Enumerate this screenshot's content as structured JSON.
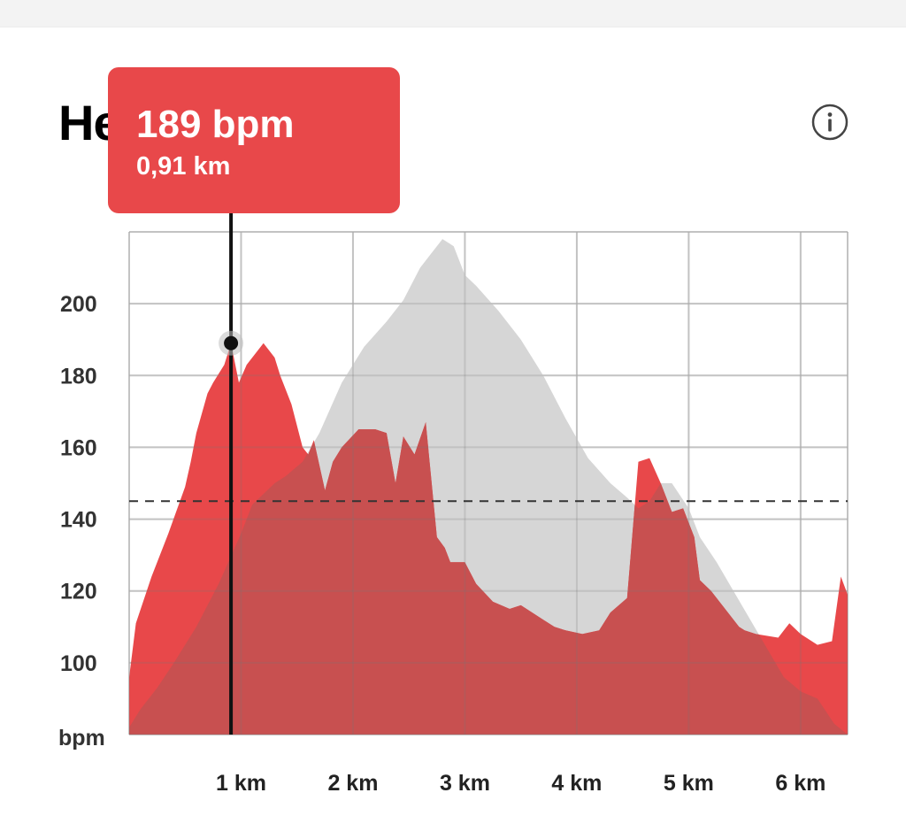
{
  "header": {
    "title": "He"
  },
  "tooltip": {
    "value": "189 bpm",
    "distance": "0,91 km"
  },
  "chart_data": {
    "type": "area",
    "ylabel": "bpm",
    "ylim": [
      80,
      220
    ],
    "xlim": [
      0,
      6.42
    ],
    "y_ticks": [
      100,
      120,
      140,
      160,
      180,
      200
    ],
    "x_ticks": [
      1,
      2,
      3,
      4,
      5,
      6
    ],
    "x_tick_labels": [
      "1 km",
      "2 km",
      "3 km",
      "4 km",
      "5 km",
      "6 km"
    ],
    "grid": true,
    "reference_line_bpm": 145,
    "cursor": {
      "x_km": 0.91,
      "bpm": 189
    },
    "colors": {
      "heart_rate": "#e8484a",
      "elevation": "#d6d6d6",
      "overlap": "#c85050"
    },
    "series": [
      {
        "key": "heart_rate",
        "x": [
          0,
          0.06,
          0.2,
          0.35,
          0.5,
          0.55,
          0.6,
          0.7,
          0.75,
          0.85,
          0.91,
          0.98,
          1.05,
          1.2,
          1.3,
          1.35,
          1.45,
          1.55,
          1.6,
          1.65,
          1.75,
          1.82,
          1.9,
          2.05,
          2.2,
          2.3,
          2.38,
          2.45,
          2.55,
          2.65,
          2.75,
          2.82,
          2.87,
          3.0,
          3.1,
          3.25,
          3.4,
          3.5,
          3.7,
          3.8,
          3.9,
          4.05,
          4.2,
          4.3,
          4.45,
          4.55,
          4.65,
          4.75,
          4.85,
          4.95,
          5.05,
          5.1,
          5.2,
          5.3,
          5.45,
          5.5,
          5.6,
          5.8,
          5.9,
          6.0,
          6.15,
          6.28,
          6.36,
          6.42
        ],
        "values": [
          96,
          111,
          124,
          136,
          149,
          156,
          164,
          175,
          178,
          183,
          189,
          178,
          183,
          189,
          185,
          180,
          172,
          160,
          158,
          162,
          148,
          156,
          160,
          165,
          165,
          164,
          150,
          163,
          158,
          167,
          135,
          132,
          128,
          128,
          122,
          117,
          115,
          116,
          112,
          110,
          109,
          108,
          109,
          114,
          118,
          156,
          157,
          150,
          142,
          143,
          135,
          123,
          120,
          116,
          110,
          109,
          108,
          107,
          111,
          108,
          105,
          106,
          124,
          119
        ]
      },
      {
        "key": "elevation",
        "x": [
          0,
          0.1,
          0.25,
          0.4,
          0.6,
          0.8,
          1.0,
          1.1,
          1.3,
          1.4,
          1.55,
          1.7,
          1.9,
          2.1,
          2.3,
          2.45,
          2.6,
          2.7,
          2.8,
          2.9,
          3.0,
          3.1,
          3.3,
          3.5,
          3.7,
          3.9,
          4.1,
          4.3,
          4.45,
          4.55,
          4.65,
          4.75,
          4.85,
          5.0,
          5.1,
          5.25,
          5.4,
          5.55,
          5.7,
          5.85,
          6.0,
          6.15,
          6.3,
          6.42
        ],
        "values": [
          82,
          87,
          93,
          100,
          110,
          122,
          136,
          144,
          150,
          152,
          156,
          164,
          178,
          188,
          195,
          201,
          210,
          214,
          218,
          216,
          208,
          205,
          198,
          190,
          180,
          168,
          157,
          150,
          146,
          143,
          145,
          150,
          150,
          143,
          135,
          128,
          120,
          112,
          104,
          96,
          92,
          90,
          83,
          80
        ]
      }
    ]
  }
}
